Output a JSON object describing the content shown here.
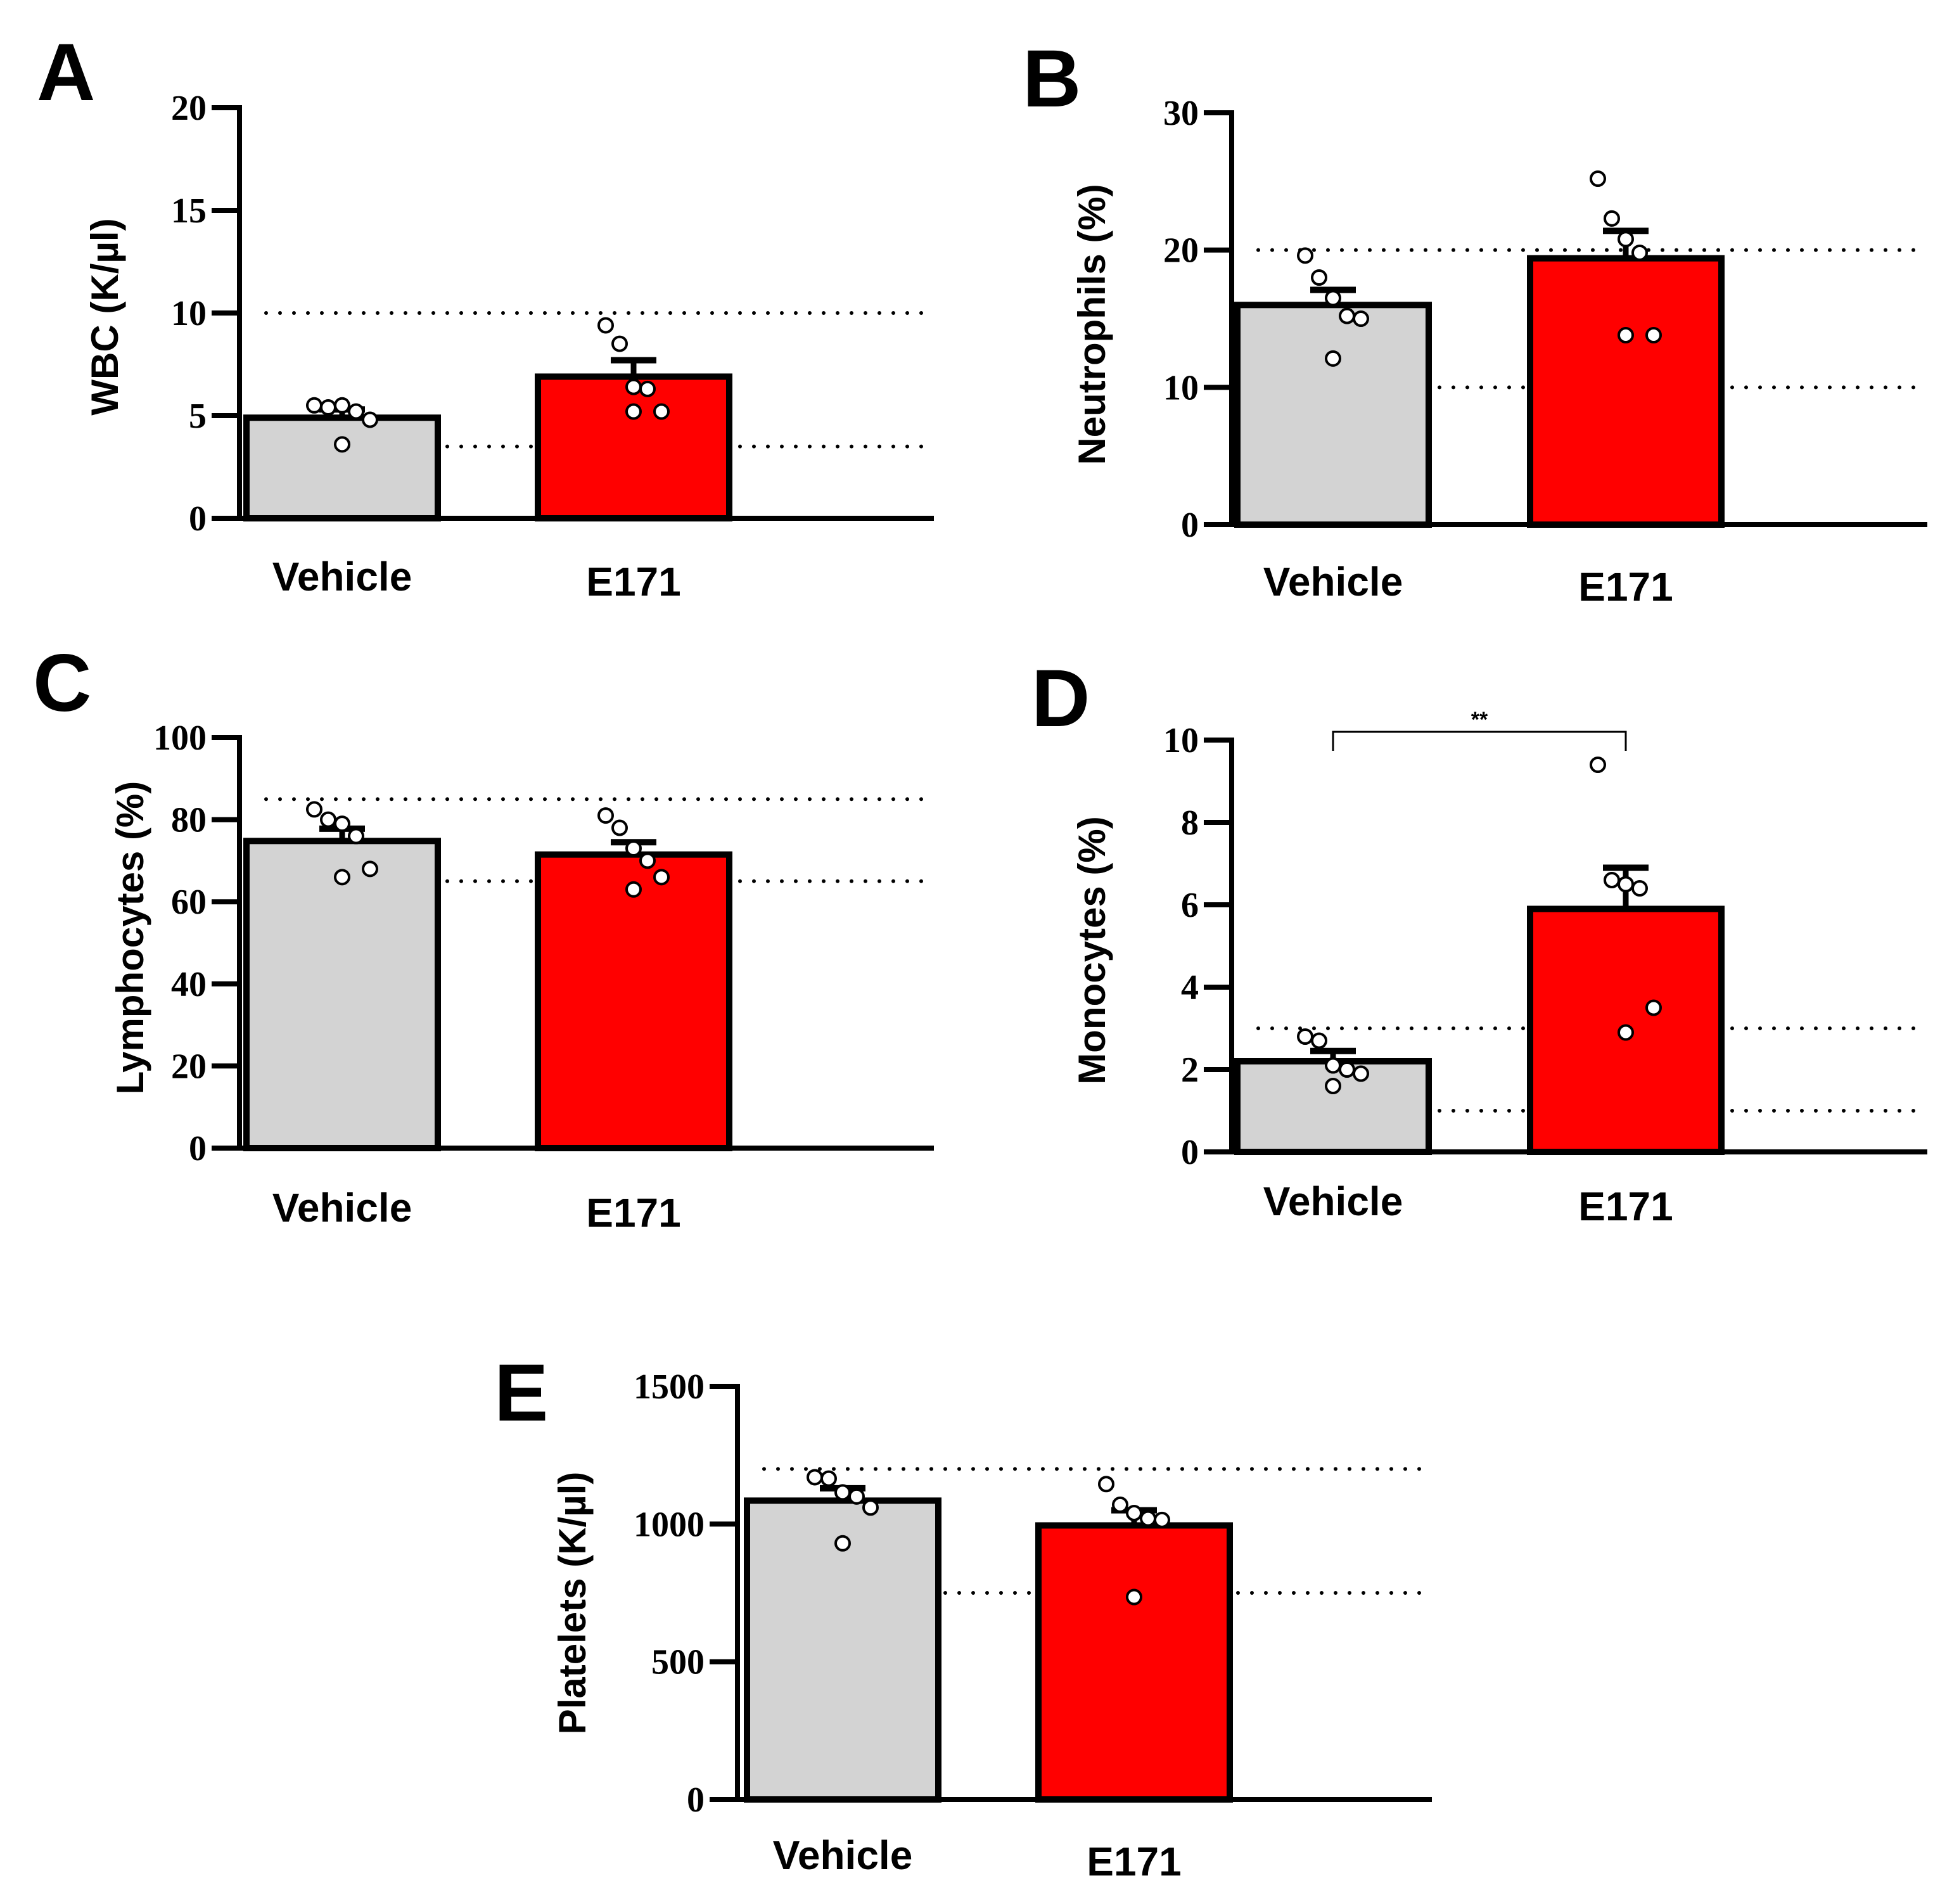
{
  "colors": {
    "vehicle": "#d3d3d3",
    "e171": "#ff0000",
    "ink": "#000000"
  },
  "chart_data": [
    {
      "panel": "A",
      "type": "bar",
      "ylabel": "WBC (K/µl)",
      "categories": [
        "Vehicle",
        "E171"
      ],
      "values": [
        4.9,
        6.9
      ],
      "errors": [
        0.4,
        0.8
      ],
      "points": [
        [
          5.5,
          5.4,
          5.5,
          5.2,
          4.8,
          3.6
        ],
        [
          9.4,
          8.5,
          6.4,
          6.3,
          5.2,
          5.2
        ]
      ],
      "ylim": [
        0,
        20
      ],
      "yticks": [
        0,
        5,
        10,
        15,
        20
      ],
      "reference_lines": [
        3.5,
        10
      ]
    },
    {
      "panel": "B",
      "type": "bar",
      "ylabel": "Neutrophils (%)",
      "categories": [
        "Vehicle",
        "E171"
      ],
      "values": [
        16.0,
        19.4
      ],
      "errors": [
        1.1,
        2.0
      ],
      "points": [
        [
          19.6,
          18.0,
          16.5,
          15.2,
          15.0,
          12.1
        ],
        [
          25.2,
          22.3,
          20.8,
          19.8,
          13.8,
          13.8
        ]
      ],
      "ylim": [
        0,
        30
      ],
      "yticks": [
        0,
        10,
        20,
        30
      ],
      "reference_lines": [
        10,
        20
      ]
    },
    {
      "panel": "C",
      "type": "bar",
      "ylabel": "Lymphocytes (%)",
      "categories": [
        "Vehicle",
        "E171"
      ],
      "values": [
        74.8,
        71.5
      ],
      "errors": [
        3.0,
        3.0
      ],
      "points": [
        [
          82.5,
          80.0,
          79.0,
          76.0,
          68.0,
          66.0
        ],
        [
          81.0,
          78.0,
          73.0,
          70.0,
          66.0,
          63.0
        ]
      ],
      "ylim": [
        0,
        100
      ],
      "yticks": [
        0,
        20,
        40,
        60,
        80,
        100
      ],
      "reference_lines": [
        65,
        85
      ]
    },
    {
      "panel": "D",
      "type": "bar",
      "ylabel": "Monocytes (%)",
      "categories": [
        "Vehicle",
        "E171"
      ],
      "values": [
        2.2,
        5.9
      ],
      "errors": [
        0.25,
        1.0
      ],
      "points": [
        [
          2.8,
          2.7,
          2.1,
          2.0,
          1.9,
          1.6
        ],
        [
          9.4,
          6.6,
          6.5,
          6.4,
          3.5,
          2.9
        ]
      ],
      "ylim": [
        0,
        10
      ],
      "yticks": [
        0,
        2,
        4,
        6,
        8,
        10
      ],
      "reference_lines": [
        1,
        3
      ],
      "significance": {
        "label": "**",
        "y": 10.2
      }
    },
    {
      "panel": "E",
      "type": "bar",
      "ylabel": "Platelets (K/µl)",
      "categories": [
        "Vehicle",
        "E171"
      ],
      "values": [
        1085,
        995
      ],
      "errors": [
        45,
        55
      ],
      "points": [
        [
          1170,
          1165,
          1115,
          1100,
          1060,
          930
        ],
        [
          1145,
          1070,
          1040,
          1020,
          1015,
          735
        ]
      ],
      "ylim": [
        0,
        1500
      ],
      "yticks": [
        0,
        500,
        1000,
        1500
      ],
      "reference_lines": [
        750,
        1200
      ]
    }
  ]
}
